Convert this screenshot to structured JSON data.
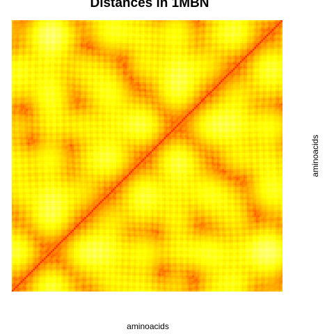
{
  "chart_data": {
    "type": "heatmap",
    "title": "Distances in 1MBN",
    "xlabel": "aminoacids",
    "ylabel": "aminoacids",
    "n_residues": 153,
    "color_scale": [
      "#ff0000",
      "#ff4400",
      "#ff8000",
      "#ffbf00",
      "#ffff00",
      "#ffff80",
      "#ffffff"
    ],
    "axes_shown": false,
    "grid": false,
    "legend": "none"
  }
}
